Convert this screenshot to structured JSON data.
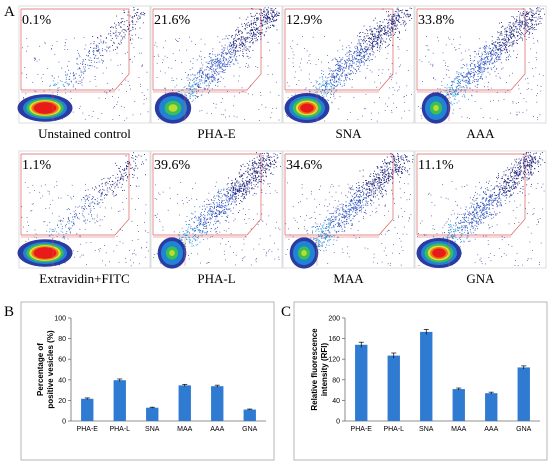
{
  "panel_labels": {
    "a": "A",
    "b": "B",
    "c": "C"
  },
  "flow_plots": [
    {
      "percent": "0.1%",
      "caption": "Unstained control",
      "blob": "large-red"
    },
    {
      "percent": "21.6%",
      "caption": "PHA-E",
      "blob": "medium-green"
    },
    {
      "percent": "12.9%",
      "caption": "SNA",
      "blob": "medium-red"
    },
    {
      "percent": "33.8%",
      "caption": "AAA",
      "blob": "small-green"
    },
    {
      "percent": "1.1%",
      "caption": "Extravidin+FITC",
      "blob": "large-red"
    },
    {
      "percent": "39.6%",
      "caption": "PHA-L",
      "blob": "small-green"
    },
    {
      "percent": "34.6%",
      "caption": "MAA",
      "blob": "small-green"
    },
    {
      "percent": "11.1%",
      "caption": "GNA",
      "blob": "medium-red"
    }
  ],
  "chart_data": [
    {
      "type": "bar",
      "categories": [
        "PHA-E",
        "PHA-L",
        "SNA",
        "MAA",
        "AAA",
        "GNA"
      ],
      "values": [
        21.6,
        39.6,
        12.9,
        34.6,
        33.8,
        11.1
      ],
      "errors": [
        0.8,
        1.2,
        0.5,
        1.0,
        1.0,
        0.5
      ],
      "ylabel": "Percentage of positive vesicles (%)",
      "ylim": [
        0,
        100
      ],
      "yticks": [
        0,
        20,
        40,
        60,
        80,
        100
      ],
      "color": "#2e7bd1"
    },
    {
      "type": "bar",
      "categories": [
        "PHA-E",
        "PHA-L",
        "SNA",
        "MAA",
        "AAA",
        "GNA"
      ],
      "values": [
        148,
        127,
        173,
        62,
        54,
        104
      ],
      "errors": [
        5,
        5,
        5,
        2,
        2,
        3
      ],
      "ylabel": "Relative fluorescence intensity (RFI)",
      "ylim": [
        0,
        200
      ],
      "yticks": [
        0,
        40,
        80,
        120,
        160,
        200
      ],
      "color": "#2e7bd1"
    }
  ]
}
